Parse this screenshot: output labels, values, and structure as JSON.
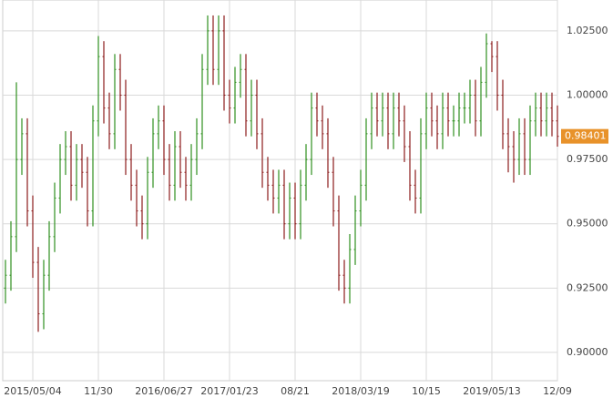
{
  "chart_data": {
    "type": "ohlc",
    "categories": [
      null,
      null,
      null,
      null,
      null,
      "2015/05/04",
      null,
      null,
      null,
      null,
      null,
      null,
      null,
      null,
      null,
      null,
      null,
      "11/30",
      null,
      null,
      null,
      null,
      null,
      null,
      null,
      null,
      null,
      null,
      null,
      "2016/06/27",
      null,
      null,
      null,
      null,
      null,
      null,
      null,
      null,
      null,
      null,
      null,
      "2017/01/23",
      null,
      null,
      null,
      null,
      null,
      null,
      null,
      null,
      null,
      null,
      null,
      "08/21",
      null,
      null,
      null,
      null,
      null,
      null,
      null,
      null,
      null,
      null,
      null,
      "2018/03/19",
      null,
      null,
      null,
      null,
      null,
      null,
      null,
      null,
      null,
      null,
      null,
      "10/15",
      null,
      null,
      null,
      null,
      null,
      null,
      null,
      null,
      null,
      null,
      null,
      "2019/05/13",
      null,
      null,
      null,
      null,
      null,
      null,
      null,
      null,
      null,
      null,
      null,
      "12/09"
    ],
    "open": [
      0.925,
      0.93,
      0.945,
      0.975,
      0.985,
      0.955,
      0.935,
      0.915,
      0.93,
      0.945,
      0.96,
      0.975,
      0.98,
      0.965,
      0.975,
      0.97,
      0.955,
      0.99,
      1.015,
      0.995,
      0.985,
      1.01,
      1.0,
      0.975,
      0.965,
      0.955,
      0.95,
      0.97,
      0.985,
      0.99,
      0.975,
      0.965,
      0.98,
      0.97,
      0.965,
      0.975,
      0.985,
      1.01,
      1.025,
      1.01,
      1.025,
      1.0,
      0.995,
      1.005,
      1.01,
      0.99,
      1.0,
      0.985,
      0.97,
      0.965,
      0.96,
      0.965,
      0.95,
      0.96,
      0.95,
      0.965,
      0.975,
      0.995,
      0.99,
      0.985,
      0.97,
      0.955,
      0.93,
      0.925,
      0.94,
      0.955,
      0.965,
      0.985,
      0.995,
      0.99,
      0.995,
      0.985,
      0.995,
      0.99,
      0.98,
      0.965,
      0.96,
      0.985,
      0.995,
      0.99,
      0.985,
      0.995,
      0.99,
      0.99,
      0.995,
      0.995,
      1.0,
      0.99,
      1.005,
      1.02,
      1.015,
      1.0,
      0.985,
      0.98,
      0.975,
      0.985,
      0.975,
      0.99,
      0.995,
      0.99,
      0.995,
      0.99
    ],
    "high": [
      0.936,
      0.951,
      1.005,
      0.991,
      0.991,
      0.961,
      0.941,
      0.936,
      0.951,
      0.966,
      0.981,
      0.986,
      0.986,
      0.981,
      0.981,
      0.976,
      0.996,
      1.023,
      1.021,
      1.001,
      1.016,
      1.016,
      1.006,
      0.981,
      0.971,
      0.961,
      0.976,
      0.991,
      0.996,
      0.996,
      0.981,
      0.986,
      0.986,
      0.976,
      0.981,
      0.991,
      1.016,
      1.031,
      1.031,
      1.031,
      1.031,
      1.006,
      1.011,
      1.016,
      1.016,
      1.006,
      1.006,
      0.991,
      0.976,
      0.971,
      0.971,
      0.971,
      0.966,
      0.966,
      0.971,
      0.981,
      1.001,
      1.001,
      0.996,
      0.991,
      0.976,
      0.961,
      0.936,
      0.946,
      0.961,
      0.971,
      0.991,
      1.001,
      1.001,
      1.001,
      1.001,
      1.001,
      1.001,
      0.996,
      0.986,
      0.971,
      0.991,
      1.001,
      1.001,
      0.996,
      1.001,
      1.001,
      0.996,
      1.001,
      1.001,
      1.006,
      1.006,
      1.011,
      1.024,
      1.021,
      1.021,
      1.006,
      0.991,
      0.986,
      0.991,
      0.991,
      0.996,
      1.001,
      1.001,
      1.001,
      1.001,
      0.996
    ],
    "low": [
      0.919,
      0.924,
      0.939,
      0.969,
      0.949,
      0.929,
      0.908,
      0.909,
      0.924,
      0.939,
      0.954,
      0.969,
      0.959,
      0.959,
      0.964,
      0.949,
      0.949,
      0.984,
      0.989,
      0.979,
      0.979,
      0.994,
      0.969,
      0.959,
      0.949,
      0.944,
      0.944,
      0.964,
      0.979,
      0.969,
      0.959,
      0.959,
      0.964,
      0.959,
      0.959,
      0.969,
      0.979,
      1.004,
      1.004,
      1.004,
      0.994,
      0.989,
      0.989,
      0.999,
      0.984,
      0.984,
      0.979,
      0.964,
      0.959,
      0.954,
      0.954,
      0.944,
      0.944,
      0.944,
      0.944,
      0.959,
      0.969,
      0.984,
      0.979,
      0.964,
      0.949,
      0.924,
      0.919,
      0.919,
      0.934,
      0.949,
      0.959,
      0.979,
      0.984,
      0.984,
      0.979,
      0.979,
      0.984,
      0.974,
      0.959,
      0.954,
      0.954,
      0.979,
      0.984,
      0.979,
      0.979,
      0.984,
      0.984,
      0.984,
      0.989,
      0.989,
      0.984,
      0.984,
      0.999,
      1.009,
      0.994,
      0.979,
      0.97,
      0.966,
      0.969,
      0.969,
      0.969,
      0.984,
      0.984,
      0.984,
      0.984,
      0.98
    ],
    "close": [
      0.93,
      0.945,
      0.975,
      0.985,
      0.955,
      0.935,
      0.915,
      0.93,
      0.945,
      0.96,
      0.975,
      0.98,
      0.965,
      0.975,
      0.97,
      0.955,
      0.99,
      1.015,
      0.995,
      0.985,
      1.01,
      1.0,
      0.975,
      0.965,
      0.955,
      0.95,
      0.97,
      0.985,
      0.99,
      0.975,
      0.965,
      0.98,
      0.97,
      0.965,
      0.975,
      0.985,
      1.01,
      1.025,
      1.01,
      1.025,
      1.0,
      0.995,
      1.005,
      1.01,
      0.99,
      1.0,
      0.985,
      0.97,
      0.965,
      0.96,
      0.965,
      0.95,
      0.96,
      0.95,
      0.965,
      0.975,
      0.995,
      0.99,
      0.985,
      0.97,
      0.955,
      0.93,
      0.925,
      0.94,
      0.955,
      0.965,
      0.985,
      0.995,
      0.99,
      0.995,
      0.985,
      0.995,
      0.99,
      0.98,
      0.965,
      0.96,
      0.985,
      0.995,
      0.99,
      0.985,
      0.995,
      0.99,
      0.99,
      0.995,
      0.995,
      1.0,
      0.99,
      1.005,
      1.02,
      1.015,
      1.0,
      0.985,
      0.98,
      0.975,
      0.985,
      0.975,
      0.99,
      0.995,
      0.99,
      0.995,
      0.99,
      0.984
    ],
    "up_color": "#2f8f1f",
    "down_color": "#8b1c1c",
    "last_price": 0.98401,
    "last_price_color": "#e8922a",
    "ylim": [
      0.889,
      1.037
    ],
    "yticks": [
      {
        "value": 0.9,
        "label": "0.90000"
      },
      {
        "value": 0.925,
        "label": "0.92500"
      },
      {
        "value": 0.95,
        "label": "0.95000"
      },
      {
        "value": 0.975,
        "label": "0.97500"
      },
      {
        "value": 1.0,
        "label": "1.00000"
      },
      {
        "value": 1.025,
        "label": "1.02500"
      }
    ],
    "grid": true
  }
}
